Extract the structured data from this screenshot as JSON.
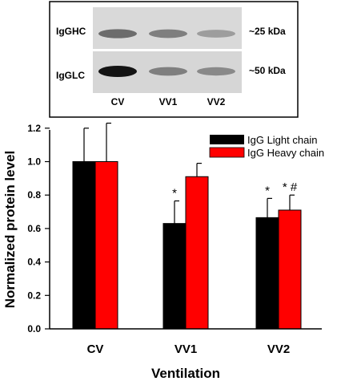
{
  "blot": {
    "rows": [
      {
        "label": "IgGHC",
        "size": "~25 kDa",
        "intensities": [
          0.55,
          0.45,
          0.3
        ]
      },
      {
        "label": "IgGLC",
        "size": "~50 kDa",
        "intensities": [
          1.0,
          0.45,
          0.4
        ]
      }
    ],
    "lanes": [
      "CV",
      "VV1",
      "VV2"
    ]
  },
  "chart_data": {
    "type": "bar",
    "categories": [
      "CV",
      "VV1",
      "VV2"
    ],
    "series": [
      {
        "name": "IgG Light chain",
        "color": "#000000",
        "values": [
          1.0,
          0.63,
          0.665
        ],
        "errors": [
          0.2,
          0.135,
          0.115
        ],
        "annotations": [
          "",
          "*",
          "*"
        ]
      },
      {
        "name": "IgG Heavy chain",
        "color": "#ff0000",
        "values": [
          1.0,
          0.91,
          0.71
        ],
        "errors": [
          0.23,
          0.08,
          0.09
        ],
        "annotations": [
          "",
          "",
          "* #"
        ]
      }
    ],
    "xlabel": "Ventilation",
    "ylabel": "Normalized protein level",
    "ylim": [
      0,
      1.3
    ],
    "yticks": [
      "0.0",
      "0.2",
      "0.4",
      "0.6",
      "0.8",
      "1.0",
      "1.2"
    ],
    "legend_position": "top-right",
    "grid": false
  }
}
